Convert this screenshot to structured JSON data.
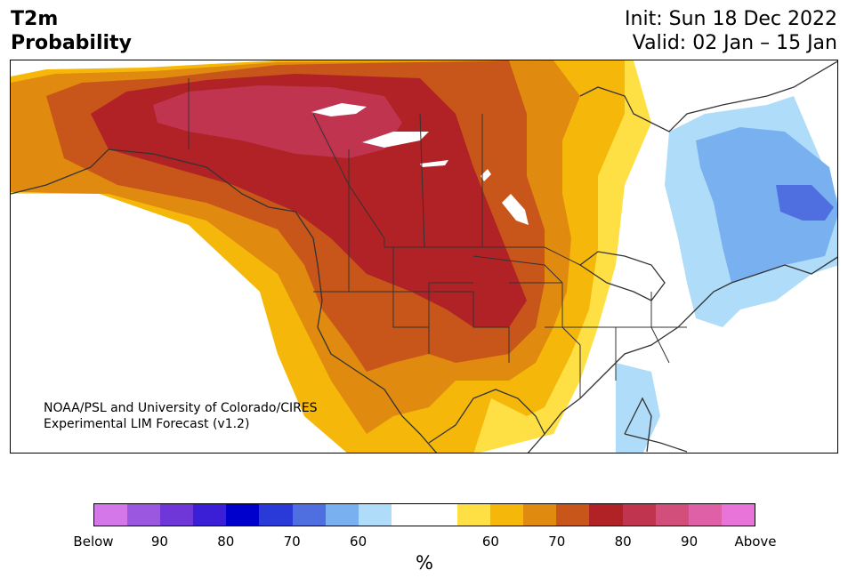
{
  "header": {
    "title_line1": "T2m",
    "title_line2": "Probability",
    "init": "Init: Sun 18 Dec 2022",
    "valid": "Valid: 02 Jan – 15 Jan"
  },
  "credit": {
    "line1": "NOAA/PSL and University of Colorado/CIRES",
    "line2": "Experimental LIM Forecast (v1.2)"
  },
  "colorbar": {
    "colors": [
      "#d477e8",
      "#9b57e0",
      "#6f37d8",
      "#3a1fd6",
      "#0000cc",
      "#2a3ad8",
      "#4f6fe0",
      "#78b0f0",
      "#aedcf9",
      "#ffffff",
      "#ffffff",
      "#ffe044",
      "#f5b80a",
      "#e08a0f",
      "#c85519",
      "#b02225",
      "#c03450",
      "#d24f7c",
      "#e060a8",
      "#e874d9"
    ],
    "tick_labels": [
      "Below",
      "90",
      "80",
      "70",
      "60",
      "60",
      "70",
      "80",
      "90",
      "Above"
    ],
    "unit": "%"
  },
  "map": {
    "colors": {
      "above_90": "#c03450",
      "above_80": "#b02225",
      "above_70": "#c85519",
      "above_65": "#e08a0f",
      "above_60": "#f5b80a",
      "above_55": "#ffe044",
      "below_55": "#aedcf9",
      "below_60": "#78b0f0",
      "below_65": "#4f6fe0",
      "neutral": "#ffffff",
      "borders": "#333333"
    }
  }
}
